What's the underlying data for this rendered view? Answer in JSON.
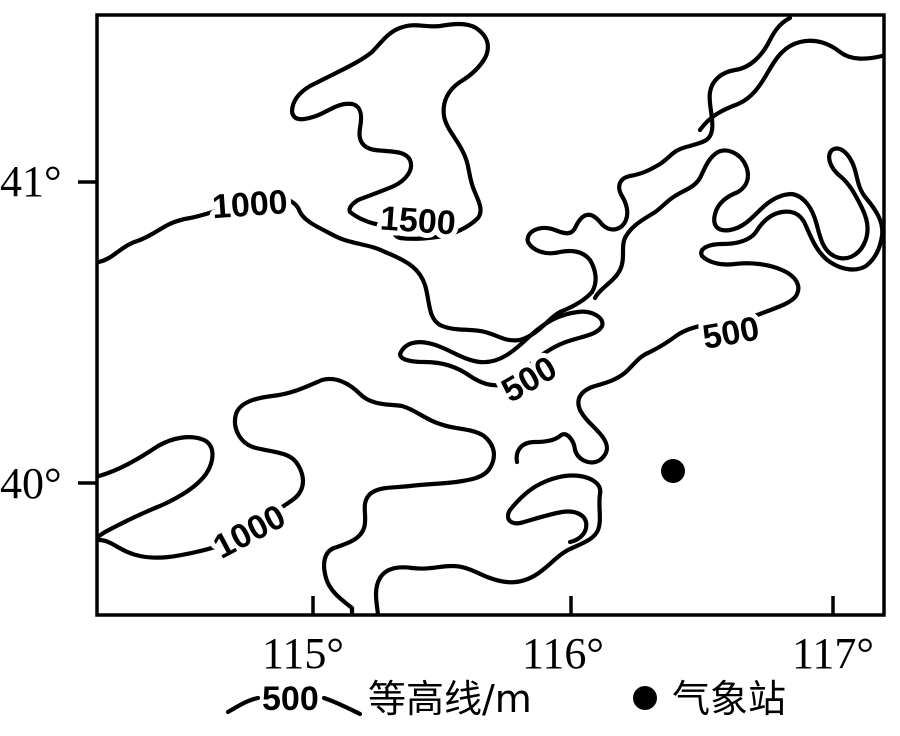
{
  "map": {
    "latitude_labels": [
      "41°",
      "40°"
    ],
    "longitude_labels": [
      "115°",
      "116°",
      "117°"
    ],
    "contour_labels": {
      "c1000_north": "1000",
      "c1500": "1500",
      "c500_mid": "500",
      "c500_east": "500",
      "c1000_southwest": "1000"
    },
    "weather_station_marker": "filled-circle"
  },
  "legend": {
    "contour_sample_value": "500",
    "contour_label": "等高线/m",
    "station_label": "气象站"
  },
  "colors": {
    "line": "#000000",
    "background": "#ffffff"
  }
}
